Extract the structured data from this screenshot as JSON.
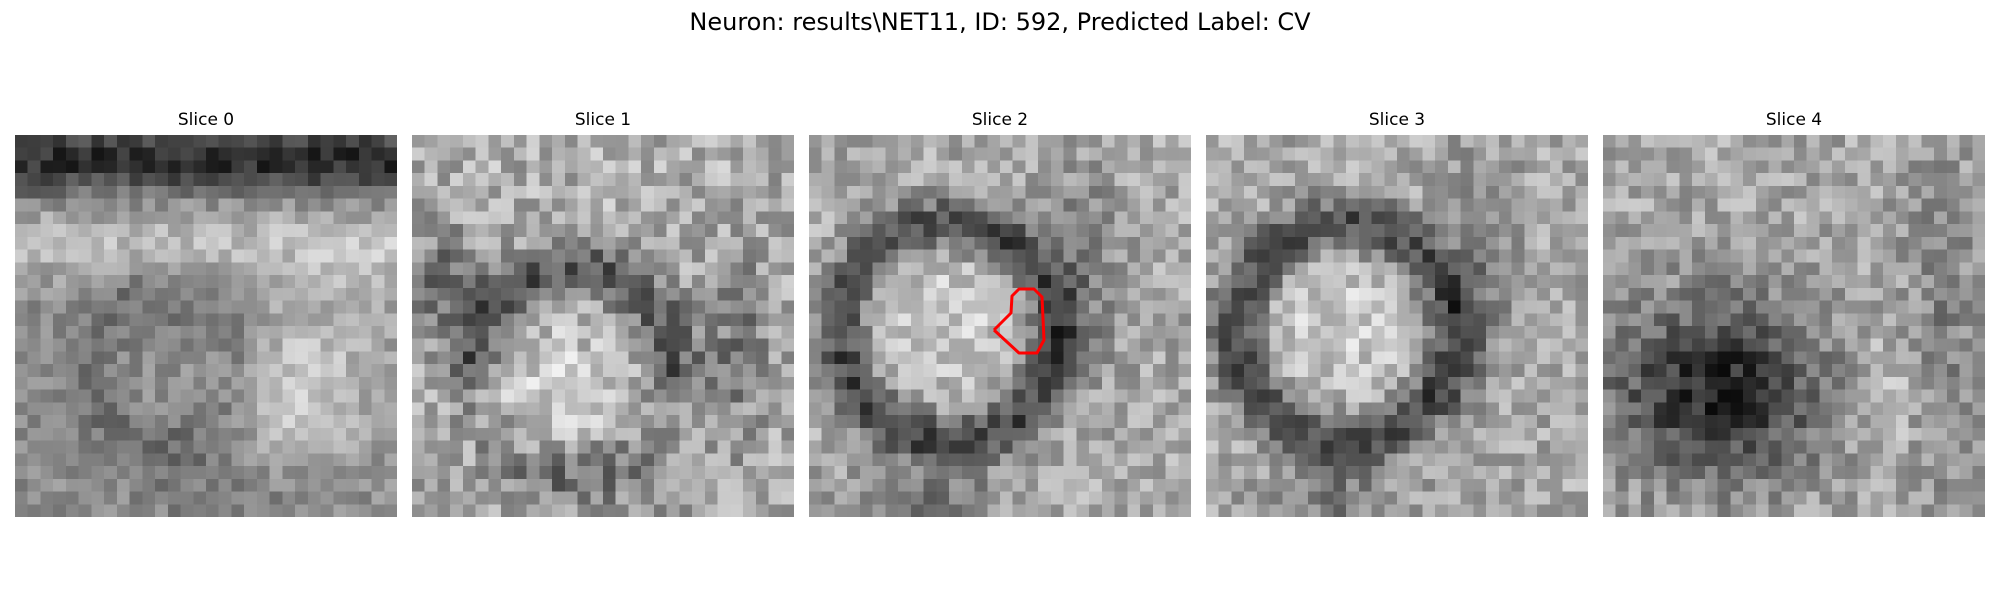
{
  "figure": {
    "title": "Neuron: results\\NET11, ID: 592, Predicted Label: CV",
    "colormap": "gray",
    "contour_color": "#ff0000"
  },
  "slices": [
    {
      "label": "Slice 0",
      "pattern": "upper-dark-band-with-bright-right-blob",
      "has_contour": false
    },
    {
      "label": "Slice 1",
      "pattern": "mottled-bright-with-dark-arc",
      "has_contour": false
    },
    {
      "label": "Slice 2",
      "pattern": "bright-center-with-dark-ring",
      "has_contour": true
    },
    {
      "label": "Slice 3",
      "pattern": "bright-center-with-dark-ring",
      "has_contour": false
    },
    {
      "label": "Slice 4",
      "pattern": "dark-center-blob",
      "has_contour": false
    }
  ]
}
